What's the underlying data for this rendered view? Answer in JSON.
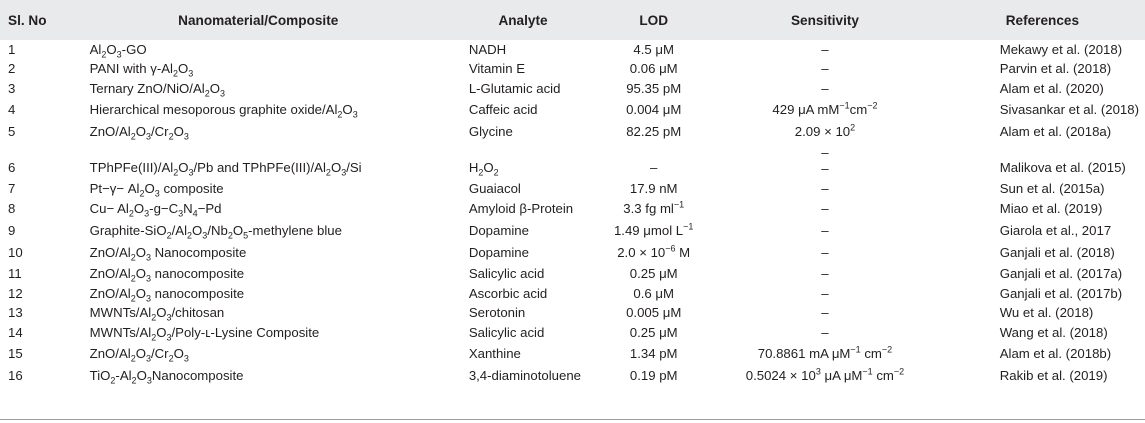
{
  "headers": [
    "Sl. No",
    "Nanomaterial/Composite",
    "Analyte",
    "LOD",
    "Sensitivity",
    "References"
  ],
  "rows": [
    {
      "no": "1",
      "material": "Al<sub>2</sub>O<sub>3</sub>-GO",
      "analyte": "NADH",
      "lod": "4.5 μM",
      "sens": "–",
      "ref": "Mekawy et al. (2018)"
    },
    {
      "no": "2",
      "material": "PANI with γ-Al<sub>2</sub>O<sub>3</sub>",
      "analyte": "Vitamin E",
      "lod": "0.06 μM",
      "sens": "–",
      "ref": "Parvin et al. (2018)"
    },
    {
      "no": "3",
      "material": "Ternary ZnO/NiO/Al<sub>2</sub>O<sub>3</sub>",
      "analyte": "L-Glutamic acid",
      "lod": "95.35 pM",
      "sens": "–",
      "ref": "Alam et al. (2020)"
    },
    {
      "no": "4",
      "material": "Hierarchical mesoporous graphite oxide/Al<sub>2</sub>O<sub>3</sub>",
      "analyte": "Caffeic acid",
      "lod": "0.004 μM",
      "sens": "429 μA mM<sup>−1</sup>cm<sup>−2</sup>",
      "ref": "Sivasankar et al. (2018)"
    },
    {
      "no": "5",
      "material": "ZnO/Al<sub>2</sub>O<sub>3</sub>/Cr<sub>2</sub>O<sub>3</sub>",
      "analyte": "Glycine",
      "lod": "82.25 pM",
      "sens": "2.09 × 10<sup>2</sup>",
      "ref": "Alam et al. (2018a)"
    },
    {
      "no": "6",
      "material": "TPhPFe(III)/Al<sub>2</sub>O<sub>3</sub>/Pb and TPhPFe(III)/Al<sub>2</sub>O<sub>3</sub>/Si",
      "analyte": "H<sub>2</sub>O<sub>2</sub>",
      "lod": "–",
      "sens": "– –",
      "ref": "Malikova et al. (2015)"
    },
    {
      "no": "7",
      "material": "Pt−γ− Al<sub>2</sub>O<sub>3</sub> composite",
      "analyte": "Guaiacol",
      "lod": "17.9 nM",
      "sens": "–",
      "ref": "Sun et al. (2015a)"
    },
    {
      "no": "8",
      "material": "Cu− Al<sub>2</sub>O<sub>3</sub>-g−C<sub>3</sub>N<sub>4</sub>−Pd",
      "analyte": "Amyloid β-Protein",
      "lod": "3.3 fg ml<sup>−1</sup>",
      "sens": "–",
      "ref": "Miao et al. (2019)"
    },
    {
      "no": "9",
      "material": "Graphite-SiO<sub>2</sub>/Al<sub>2</sub>O<sub>3</sub>/Nb<sub>2</sub>O<sub>5</sub>-methylene blue",
      "analyte": "Dopamine",
      "lod": "1.49 μmol L<sup>−1</sup>",
      "sens": "–",
      "ref": "Giarola et al., 2017"
    },
    {
      "no": "10",
      "material": "ZnO/Al<sub>2</sub>O<sub>3</sub> Nanocomposite",
      "analyte": "Dopamine",
      "lod": "2.0 × 10<sup>−6</sup> M",
      "sens": "–",
      "ref": "Ganjali et al. (2018)"
    },
    {
      "no": "11",
      "material": "ZnO/Al<sub>2</sub>O<sub>3</sub> nanocomposite",
      "analyte": "Salicylic acid",
      "lod": "0.25 μM",
      "sens": "–",
      "ref": "Ganjali et al. (2017a)"
    },
    {
      "no": "12",
      "material": "ZnO/Al<sub>2</sub>O<sub>3</sub> nanocomposite",
      "analyte": "Ascorbic acid",
      "lod": "0.6 μM",
      "sens": "–",
      "ref": "Ganjali et al. (2017b)"
    },
    {
      "no": "13",
      "material": "MWNTs/Al<sub>2</sub>O<sub>3</sub>/chitosan",
      "analyte": "Serotonin",
      "lod": "0.005 μM",
      "sens": "–",
      "ref": "Wu et al. (2018)"
    },
    {
      "no": "14",
      "material": "MWNTs/Al<sub>2</sub>O<sub>3</sub>/Poly-ʟ-Lysine Composite",
      "analyte": "Salicylic acid",
      "lod": "0.25 μM",
      "sens": "–",
      "ref": "Wang et al. (2018)"
    },
    {
      "no": "15",
      "material": "ZnO/Al<sub>2</sub>O<sub>3</sub>/Cr<sub>2</sub>O<sub>3</sub>",
      "analyte": "Xanthine",
      "lod": "1.34 pM",
      "sens": "70.8861 mA μM<sup>−1</sup> cm<sup>−2</sup>",
      "ref": "Alam et al. (2018b)"
    },
    {
      "no": "16",
      "material": "TiO<sub>2</sub>-Al<sub>2</sub>O<sub>3</sub>Nanocomposite",
      "analyte": "3,4-diaminotoluene",
      "lod": "0.19 pM",
      "sens": "0.5024 × 10<sup>3</sup> μA μM<sup>−1</sup> cm<sup>−2</sup>",
      "ref": "Rakib et al. (2019)"
    }
  ]
}
